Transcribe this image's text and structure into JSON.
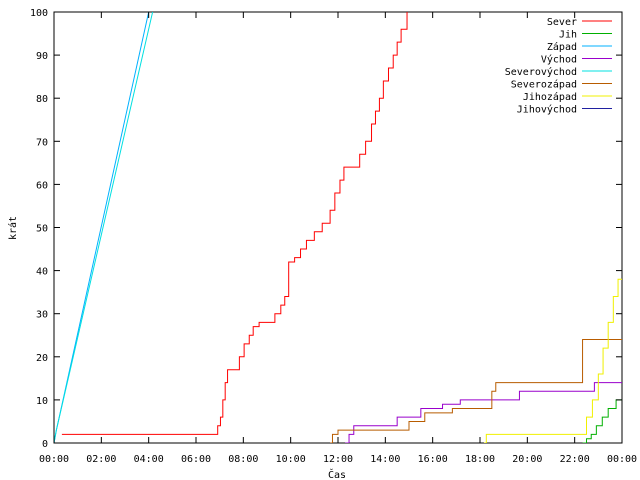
{
  "chart_data": {
    "type": "line",
    "title": "",
    "xlabel": "Čas",
    "ylabel": "krát",
    "xlim": [
      0,
      1440
    ],
    "ylim": [
      0,
      100
    ],
    "x_ticks": [
      {
        "minute": 0,
        "label": "00:00"
      },
      {
        "minute": 120,
        "label": "02:00"
      },
      {
        "minute": 240,
        "label": "04:00"
      },
      {
        "minute": 360,
        "label": "06:00"
      },
      {
        "minute": 480,
        "label": "08:00"
      },
      {
        "minute": 600,
        "label": "10:00"
      },
      {
        "minute": 720,
        "label": "12:00"
      },
      {
        "minute": 840,
        "label": "14:00"
      },
      {
        "minute": 960,
        "label": "16:00"
      },
      {
        "minute": 1080,
        "label": "18:00"
      },
      {
        "minute": 1200,
        "label": "20:00"
      },
      {
        "minute": 1320,
        "label": "22:00"
      },
      {
        "minute": 1440,
        "label": "00:00"
      }
    ],
    "y_ticks": [
      0,
      10,
      20,
      30,
      40,
      50,
      60,
      70,
      80,
      90,
      100
    ],
    "grid": false,
    "legend_position": "top-right",
    "x_unit": "minutes since 00:00",
    "series": [
      {
        "name": "Sever",
        "color": "#ff0000",
        "step": true,
        "points": [
          [
            20,
            2
          ],
          [
            405,
            2
          ],
          [
            415,
            4
          ],
          [
            422,
            6
          ],
          [
            428,
            10
          ],
          [
            434,
            14
          ],
          [
            440,
            17
          ],
          [
            455,
            17
          ],
          [
            470,
            20
          ],
          [
            482,
            23
          ],
          [
            495,
            25
          ],
          [
            505,
            27
          ],
          [
            520,
            28
          ],
          [
            545,
            28
          ],
          [
            560,
            30
          ],
          [
            575,
            32
          ],
          [
            585,
            34
          ],
          [
            595,
            42
          ],
          [
            610,
            43
          ],
          [
            625,
            45
          ],
          [
            640,
            47
          ],
          [
            660,
            49
          ],
          [
            680,
            51
          ],
          [
            700,
            54
          ],
          [
            712,
            58
          ],
          [
            725,
            61
          ],
          [
            735,
            64
          ],
          [
            760,
            64
          ],
          [
            775,
            67
          ],
          [
            790,
            70
          ],
          [
            805,
            74
          ],
          [
            815,
            77
          ],
          [
            825,
            80
          ],
          [
            835,
            84
          ],
          [
            848,
            87
          ],
          [
            860,
            90
          ],
          [
            870,
            93
          ],
          [
            880,
            96
          ],
          [
            895,
            100
          ]
        ]
      },
      {
        "name": "Jih",
        "color": "#00b000",
        "step": true,
        "points": [
          [
            1340,
            0
          ],
          [
            1350,
            1
          ],
          [
            1362,
            2
          ],
          [
            1375,
            4
          ],
          [
            1390,
            6
          ],
          [
            1405,
            8
          ],
          [
            1425,
            10
          ],
          [
            1440,
            10
          ]
        ]
      },
      {
        "name": "Západ",
        "color": "#00b0ff",
        "step": false,
        "points": [
          [
            0,
            0
          ],
          [
            6,
            3
          ],
          [
            240,
            100
          ]
        ]
      },
      {
        "name": "Východ",
        "color": "#9900cc",
        "step": true,
        "points": [
          [
            738,
            0
          ],
          [
            748,
            2
          ],
          [
            760,
            4
          ],
          [
            830,
            4
          ],
          [
            870,
            6
          ],
          [
            930,
            8
          ],
          [
            985,
            9
          ],
          [
            1030,
            10
          ],
          [
            1100,
            10
          ],
          [
            1180,
            12
          ],
          [
            1330,
            12
          ],
          [
            1370,
            14
          ],
          [
            1440,
            14
          ]
        ]
      },
      {
        "name": "Severovýchod",
        "color": "#00e0e0",
        "step": false,
        "points": [
          [
            0,
            0
          ],
          [
            6,
            3
          ],
          [
            250,
            100
          ]
        ]
      },
      {
        "name": "Severozápad",
        "color": "#b85c00",
        "step": true,
        "points": [
          [
            700,
            0
          ],
          [
            706,
            2
          ],
          [
            720,
            3
          ],
          [
            850,
            3
          ],
          [
            900,
            5
          ],
          [
            940,
            7
          ],
          [
            1010,
            8
          ],
          [
            1110,
            12
          ],
          [
            1120,
            14
          ],
          [
            1275,
            14
          ],
          [
            1340,
            24
          ],
          [
            1440,
            24
          ]
        ]
      },
      {
        "name": "Jihozápad",
        "color": "#f0f000",
        "step": true,
        "points": [
          [
            1090,
            0
          ],
          [
            1096,
            2
          ],
          [
            1340,
            2
          ],
          [
            1350,
            6
          ],
          [
            1365,
            10
          ],
          [
            1380,
            16
          ],
          [
            1392,
            22
          ],
          [
            1405,
            28
          ],
          [
            1418,
            34
          ],
          [
            1430,
            38
          ],
          [
            1440,
            38
          ]
        ]
      },
      {
        "name": "Jihovýchod",
        "color": "#2020a0",
        "step": true,
        "points": []
      }
    ]
  }
}
